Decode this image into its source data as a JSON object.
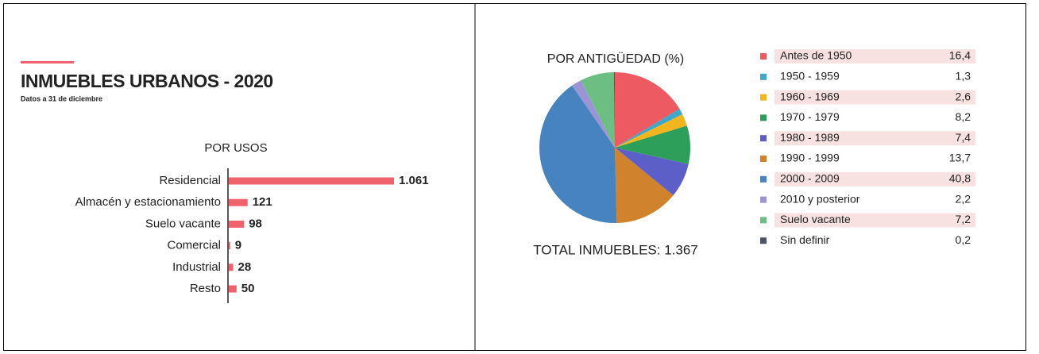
{
  "header": {
    "title": "INMUEBLES URBANOS - 2020",
    "subtitle": "Datos a 31 de diciembre"
  },
  "chart_data": [
    {
      "type": "hbar",
      "title": "POR USOS",
      "categories": [
        "Residencial",
        "Almacén y estacionamiento",
        "Suelo vacante",
        "Comercial",
        "Industrial",
        "Resto"
      ],
      "values": [
        1061,
        121,
        98,
        9,
        28,
        50
      ],
      "value_labels": [
        "1.061",
        "121",
        "98",
        "9",
        "28",
        "50"
      ],
      "color": "#f0626b"
    },
    {
      "type": "pie",
      "title": "POR ANTIGÜEDAD (%)",
      "categories": [
        "Antes de 1950",
        "1950 - 1959",
        "1960 - 1969",
        "1970 - 1979",
        "1980 - 1989",
        "1990 - 1999",
        "2000 - 2009",
        "2010 y posterior",
        "Suelo vacante",
        "Sin definir"
      ],
      "values": [
        16.4,
        1.3,
        2.6,
        8.2,
        7.4,
        13.7,
        40.8,
        2.2,
        7.2,
        0.2
      ],
      "value_labels": [
        "16,4",
        "1,3",
        "2,6",
        "8,2",
        "7,4",
        "13,7",
        "40,8",
        "2,2",
        "7,2",
        "0,2"
      ],
      "colors": [
        "#ee5a62",
        "#3fa8c9",
        "#f2b51d",
        "#2e9e5b",
        "#5b5fc7",
        "#d0822c",
        "#4683bf",
        "#9b95d6",
        "#6cbe83",
        "#4a5668"
      ],
      "annotation": "TOTAL INMUEBLES: 1.367"
    }
  ]
}
